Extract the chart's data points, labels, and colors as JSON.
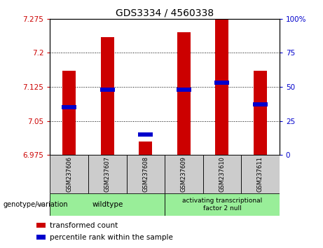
{
  "title": "GDS3334 / 4560338",
  "samples": [
    "GSM237606",
    "GSM237607",
    "GSM237608",
    "GSM237609",
    "GSM237610",
    "GSM237611"
  ],
  "transformed_count": [
    7.16,
    7.235,
    7.005,
    7.245,
    7.28,
    7.16
  ],
  "percentile_rank": [
    35,
    48,
    15,
    48,
    53,
    37
  ],
  "ymin": 6.975,
  "ymax": 7.275,
  "yticks": [
    6.975,
    7.05,
    7.125,
    7.2,
    7.275
  ],
  "ytick_labels": [
    "6.975",
    "7.05",
    "7.125",
    "7.2",
    "7.275"
  ],
  "right_yticks": [
    0,
    25,
    50,
    75,
    100
  ],
  "right_ytick_labels": [
    "0",
    "25",
    "50",
    "75",
    "100%"
  ],
  "bar_color": "#cc0000",
  "pct_color": "#0000cc",
  "group1_label": "wildtype",
  "group2_label": "activating transcriptional\nfactor 2 null",
  "group1_indices": [
    0,
    1,
    2
  ],
  "group2_indices": [
    3,
    4,
    5
  ],
  "group_bg_color": "#99ee99",
  "sample_bg_color": "#cccccc",
  "legend_red_label": "transformed count",
  "legend_blue_label": "percentile rank within the sample",
  "title_fontsize": 10,
  "tick_fontsize": 7.5,
  "bar_width": 0.35,
  "geno_label": "genotype/variation"
}
